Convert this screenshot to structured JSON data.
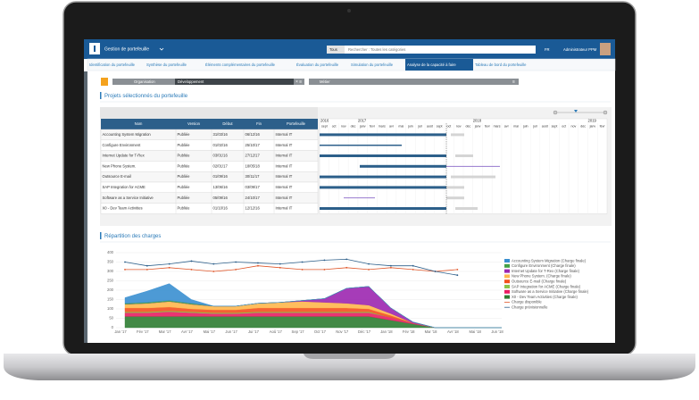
{
  "header": {
    "app_title": "Gestion de portefeuille",
    "search_scope": "Tous",
    "search_placeholder": "Rechercher : Toutes les catégories",
    "language": "FR",
    "user": "Administrateur PPM"
  },
  "tabs": [
    {
      "label": "Identification du portefeuille"
    },
    {
      "label": "Synthèse du portefeuille"
    },
    {
      "label": "Éléments complémentaires du portefeuille"
    },
    {
      "label": "Évaluation du portefeuille"
    },
    {
      "label": "Simulation du portefeuille"
    },
    {
      "label": "Analyse de la capacité à faire",
      "active": true
    },
    {
      "label": "Tableau de bord du portefeuille"
    }
  ],
  "filters": {
    "organisation": "Organisation",
    "organisation_value": "Développement",
    "metier": "Métier"
  },
  "projects_title": "Projets sélectionnés du portefeuille",
  "table": {
    "columns": [
      "Nom",
      "Version",
      "Début",
      "Fin",
      "Portefeuille"
    ],
    "rows": [
      [
        "Accounting System Migration",
        "Publiée",
        "31/03/16",
        "06/12/16",
        "Internal IT"
      ],
      [
        "Configure Environment",
        "Publiée",
        "01/02/16",
        "25/10/17",
        "Internal IT"
      ],
      [
        "Internet Update for T-Rex",
        "Publiée",
        "03/01/16",
        "27/12/17",
        "Internal IT"
      ],
      [
        "New Phone System.",
        "Publiée",
        "02/01/17",
        "18/05/18",
        "Internal IT"
      ],
      [
        "Outsource E-mail",
        "Publiée",
        "01/09/16",
        "30/11/17",
        "Internal IT"
      ],
      [
        "SAP Integration for ACME",
        "Publiée",
        "13/06/16",
        "03/09/17",
        "Internal IT"
      ],
      [
        "Software as a Service Initiative",
        "Publiée",
        "05/09/16",
        "24/10/17",
        "Internal IT"
      ],
      [
        "X0 - Dev Team Activities",
        "Publiée",
        "01/10/16",
        "12/12/16",
        "Internal IT"
      ]
    ]
  },
  "gantt": {
    "years": [
      "2016",
      "2017",
      "2018",
      "2019"
    ],
    "months": [
      "sept",
      "oct",
      "nov",
      "déc",
      "janv",
      "févr",
      "mars",
      "avr",
      "mai",
      "juin",
      "juil",
      "août",
      "sept",
      "oct",
      "nov",
      "déc",
      "janv",
      "févr",
      "mars",
      "avr",
      "mai",
      "juin",
      "juil",
      "août",
      "sept",
      "oct",
      "nov",
      "déc",
      "janv",
      "févr"
    ]
  },
  "chart_data": {
    "type": "area",
    "title": "Répartition des charges",
    "categories": [
      "Jan '17",
      "Fév '17",
      "Mar '17",
      "Avr '17",
      "Mai '17",
      "Jun '17",
      "Jui '17",
      "Aoû '17",
      "Sep '17",
      "Oct '17",
      "Nov '17",
      "Déc '17",
      "Jan '18",
      "Fév '18",
      "Mar '18",
      "Avr '18",
      "Mai '18",
      "Jun '18"
    ],
    "ylim": [
      0,
      400
    ],
    "yticks": [
      0,
      50,
      100,
      150,
      200,
      250,
      300,
      350,
      400
    ],
    "grid": true,
    "stacked": true,
    "series": [
      {
        "name": "Accounting System Migration (Charge finale)",
        "color": "#3a8fd0",
        "kind": "area",
        "values": [
          30,
          60,
          90,
          20,
          0,
          0,
          0,
          0,
          0,
          0,
          0,
          0,
          0,
          0,
          0,
          0,
          0,
          0
        ]
      },
      {
        "name": "Configure Environment (Charge finale)",
        "color": "#43a047",
        "kind": "area",
        "values": [
          5,
          5,
          5,
          5,
          0,
          0,
          0,
          0,
          0,
          0,
          0,
          0,
          0,
          0,
          0,
          0,
          0,
          0
        ]
      },
      {
        "name": "Internet Update for T-Rex (Charge finale)",
        "color": "#9c27b0",
        "kind": "area",
        "values": [
          0,
          0,
          0,
          0,
          0,
          0,
          0,
          0,
          5,
          20,
          80,
          100,
          30,
          5,
          0,
          0,
          0,
          0
        ]
      },
      {
        "name": "New Phone System. (Charge finale)",
        "color": "#ffb74d",
        "kind": "area",
        "values": [
          20,
          25,
          30,
          25,
          20,
          20,
          25,
          30,
          35,
          30,
          25,
          20,
          10,
          0,
          0,
          0,
          0,
          0
        ]
      },
      {
        "name": "Outsource E-mail (Charge finale)",
        "color": "#f4511e",
        "kind": "area",
        "values": [
          20,
          20,
          20,
          15,
          15,
          15,
          20,
          20,
          20,
          20,
          20,
          15,
          10,
          0,
          0,
          0,
          0,
          0
        ]
      },
      {
        "name": "SAP Integration for ACME (Charge finale)",
        "color": "#8bc34a",
        "kind": "area",
        "values": [
          5,
          5,
          5,
          5,
          5,
          5,
          5,
          5,
          5,
          5,
          5,
          5,
          0,
          0,
          0,
          0,
          0,
          0
        ]
      },
      {
        "name": "Software as a Service Initiative (Charge finale)",
        "color": "#e91e63",
        "kind": "area",
        "values": [
          20,
          20,
          25,
          20,
          15,
          15,
          20,
          20,
          20,
          20,
          20,
          20,
          15,
          5,
          0,
          0,
          0,
          0
        ]
      },
      {
        "name": "X0 - Dev Team Activities (Charge finale)",
        "color": "#2e7d32",
        "kind": "area",
        "values": [
          60,
          60,
          60,
          60,
          60,
          60,
          60,
          60,
          60,
          60,
          60,
          60,
          40,
          20,
          0,
          0,
          0,
          0
        ]
      },
      {
        "name": "Charge disponible",
        "color": "#e0572a",
        "kind": "line",
        "values": [
          310,
          310,
          320,
          310,
          300,
          310,
          330,
          320,
          310,
          310,
          320,
          310,
          320,
          310,
          300,
          310,
          null,
          null
        ]
      },
      {
        "name": "Charge prévisionnelle",
        "color": "#2d5f8a",
        "kind": "line",
        "values": [
          350,
          330,
          340,
          355,
          340,
          350,
          345,
          340,
          350,
          360,
          365,
          340,
          330,
          330,
          300,
          280,
          null,
          null
        ]
      }
    ]
  }
}
